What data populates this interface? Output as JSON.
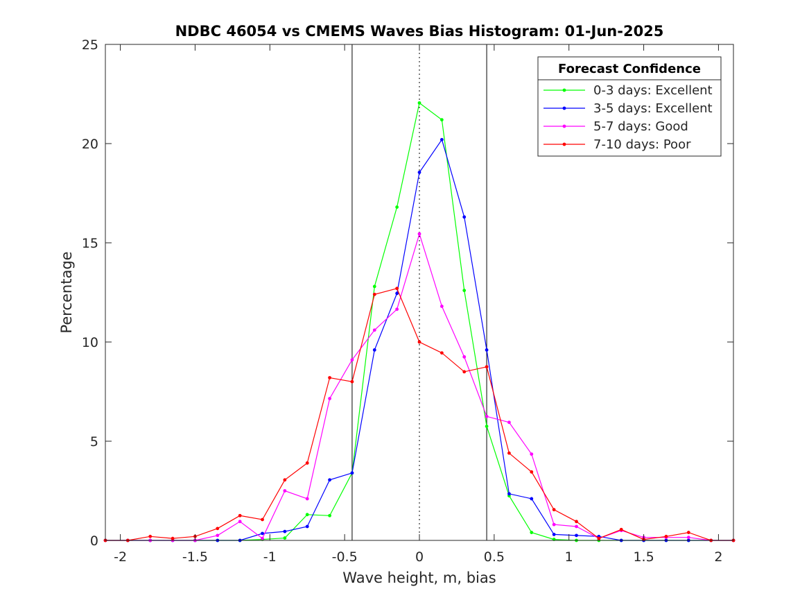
{
  "chart_data": {
    "type": "line",
    "title": "NDBC 46054 vs CMEMS Waves Bias Histogram: 01-Jun-2025",
    "xlabel": "Wave height, m, bias",
    "ylabel": "Percentage",
    "xlim": [
      -2.1,
      2.1
    ],
    "ylim": [
      0,
      25
    ],
    "xticks": [
      -2,
      -1.5,
      -1,
      -0.5,
      0,
      0.5,
      1,
      1.5,
      2
    ],
    "xtick_labels": [
      "-2",
      "-1.5",
      "-1",
      "-0.5",
      "0",
      "0.5",
      "1",
      "1.5",
      "2"
    ],
    "yticks": [
      0,
      5,
      10,
      15,
      20,
      25
    ],
    "ytick_labels": [
      "0",
      "5",
      "10",
      "15",
      "20",
      "25"
    ],
    "grid": false,
    "vertical_lines": [
      {
        "x": -0.45,
        "style": "solid"
      },
      {
        "x": 0,
        "style": "dotted"
      },
      {
        "x": 0.45,
        "style": "solid"
      }
    ],
    "legend": {
      "title": "Forecast Confidence",
      "position": "top-right"
    },
    "x": [
      -2.1,
      -1.95,
      -1.8,
      -1.65,
      -1.5,
      -1.35,
      -1.2,
      -1.05,
      -0.9,
      -0.75,
      -0.6,
      -0.45,
      -0.3,
      -0.15,
      0,
      0.15,
      0.3,
      0.45,
      0.6,
      0.75,
      0.9,
      1.05,
      1.2,
      1.35,
      1.5,
      1.65,
      1.8,
      1.95,
      2.1
    ],
    "series": [
      {
        "name": "0-3 days: Excellent",
        "color": "#00ff00",
        "values": [
          0,
          0,
          0,
          0,
          0,
          0,
          0,
          0.05,
          0.12,
          1.3,
          1.25,
          3.4,
          12.8,
          16.8,
          22.05,
          21.2,
          12.6,
          5.75,
          2.25,
          0.4,
          0.05,
          0,
          0,
          0,
          0,
          0,
          0,
          0,
          0
        ]
      },
      {
        "name": "3-5 days: Excellent",
        "color": "#0000ff",
        "values": [
          0,
          0,
          0,
          0,
          0,
          0,
          0,
          0.35,
          0.45,
          0.7,
          3.05,
          3.4,
          9.6,
          12.45,
          18.55,
          20.2,
          16.3,
          9.6,
          2.35,
          2.1,
          0.3,
          0.25,
          0.2,
          0,
          0,
          0,
          0,
          0,
          0
        ]
      },
      {
        "name": "5-7 days: Good",
        "color": "#ff00ff",
        "values": [
          0,
          0,
          0,
          0,
          0,
          0.25,
          0.95,
          0.1,
          2.5,
          2.1,
          7.15,
          9.1,
          10.6,
          11.65,
          15.45,
          11.8,
          9.25,
          6.25,
          5.95,
          4.35,
          0.8,
          0.7,
          0.1,
          0.5,
          0.15,
          0.15,
          0.15,
          0,
          0
        ]
      },
      {
        "name": "7-10 days: Poor",
        "color": "#ff0000",
        "values": [
          0,
          0,
          0.2,
          0.1,
          0.2,
          0.6,
          1.25,
          1.05,
          3.05,
          3.9,
          8.2,
          8.0,
          12.4,
          12.7,
          10.0,
          9.45,
          8.5,
          8.75,
          4.4,
          3.45,
          1.55,
          0.95,
          0.1,
          0.55,
          0.05,
          0.2,
          0.4,
          0,
          0
        ]
      }
    ]
  }
}
